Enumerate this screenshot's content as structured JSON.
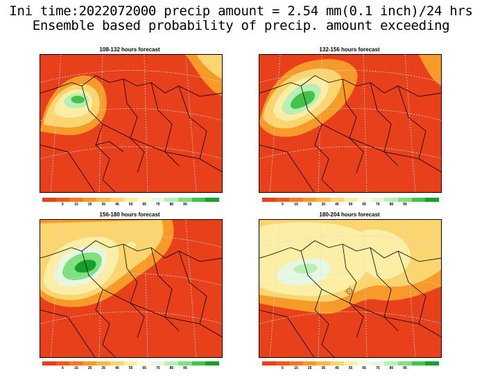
{
  "header": {
    "line1": "Ini time:2022072000 precip amount = 2.54 mm(0.1 inch)/24 hrs",
    "line2": "Ensemble based probability of precip. amount exceeding"
  },
  "panels": [
    {
      "title": "108-132 hours forecast"
    },
    {
      "title": "132-156 hours forecast"
    },
    {
      "title": "156-180 hours forecast"
    },
    {
      "title": "180-204 hours forecast"
    }
  ],
  "colorbar": {
    "colors": [
      "#e8401a",
      "#ef5a1c",
      "#f47a22",
      "#f79a2a",
      "#f9b947",
      "#fbd56f",
      "#fdeea5",
      "#fdfbd9",
      "#e6f7e4",
      "#b8efb4",
      "#7fe07f",
      "#43c34a",
      "#14a02c"
    ],
    "labels": [
      "5",
      "15",
      "25",
      "35",
      "45",
      "55",
      "65",
      "75",
      "85",
      "95"
    ]
  },
  "palette": {
    "background": "#e8401a",
    "grid": "#d8d8d8",
    "border": "#000000"
  }
}
